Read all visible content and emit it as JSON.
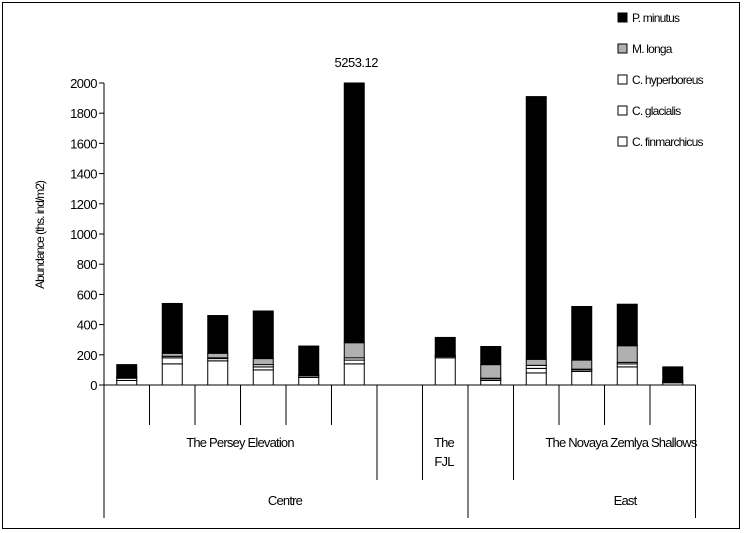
{
  "chart_data": {
    "type": "bar",
    "stacked": true,
    "ylabel": "Abundance (ths. ind/m2)",
    "ylim": [
      0,
      2000
    ],
    "yticks": [
      0,
      200,
      400,
      600,
      800,
      1000,
      1200,
      1400,
      1600,
      1800,
      2000
    ],
    "stations": 13,
    "series": [
      {
        "name": "C. finmarchicus",
        "color": "#ffffff",
        "values": [
          30,
          140,
          160,
          100,
          50,
          140,
          null,
          180,
          null,
          30,
          80,
          90,
          120,
          15
        ]
      },
      {
        "name": "C. glacialis",
        "color": "#ffffff",
        "values": [
          15,
          40,
          15,
          20,
          10,
          25,
          null,
          8,
          null,
          10,
          30,
          10,
          20,
          5
        ]
      },
      {
        "name": "C. hyperboreus",
        "color": "#ffffff",
        "values": [
          5,
          10,
          5,
          15,
          3,
          15,
          null,
          5,
          null,
          5,
          20,
          5,
          10,
          3
        ]
      },
      {
        "name": "M. longa",
        "color": "#b0b0b0",
        "values": [
          5,
          20,
          30,
          40,
          5,
          100,
          null,
          2,
          null,
          90,
          40,
          60,
          110,
          7
        ]
      },
      {
        "name": "P. minutus",
        "color": "#000000",
        "values": [
          80,
          330,
          250,
          315,
          190,
          1740,
          null,
          120,
          null,
          120,
          1740,
          355,
          275,
          90
        ]
      }
    ],
    "annotations": [
      {
        "text": "5253.12",
        "station": 5
      }
    ],
    "legend_position": "top-right",
    "groups_level1": [
      {
        "label": "The Persey Elevation",
        "span": [
          0,
          6
        ]
      },
      {
        "label_lines": [
          "The",
          "FJL"
        ],
        "span": [
          7,
          8
        ]
      },
      {
        "label": "The Novaya Zemlya Shallows",
        "span": [
          10,
          13
        ]
      }
    ],
    "groups_level2": [
      {
        "label": "Centre",
        "span": [
          0,
          8
        ]
      },
      {
        "label": "East",
        "span": [
          9,
          13
        ]
      }
    ]
  },
  "legend_labels": [
    "P. minutus",
    "M. longa",
    "C. hyperboreus",
    "C. glacialis",
    "C. finmarchicus"
  ]
}
